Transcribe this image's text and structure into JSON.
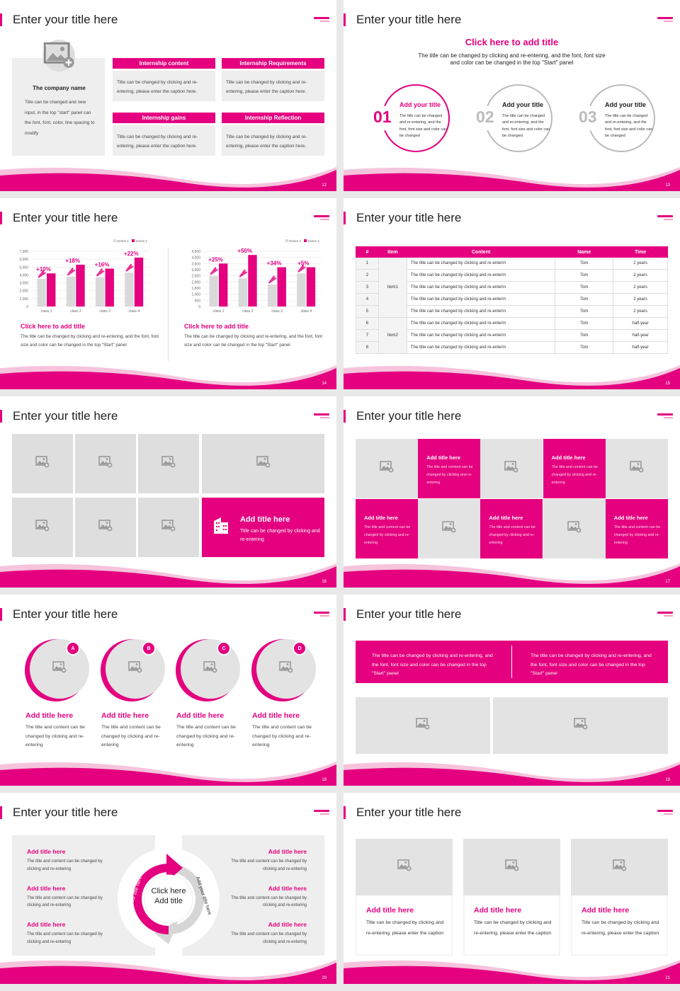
{
  "colors": {
    "accent": "#e4007f",
    "panel": "#eeeeee",
    "placeholder": "#dedede"
  },
  "common": {
    "slide_title": "Enter your title here",
    "logo_text": "xhoiland"
  },
  "slides": [
    {
      "page": "12",
      "company": {
        "name": "The company name",
        "text": "Title can be changed and new input, in the top \"start\" panel can the font, font, color, line spacing to modify",
        "icon": "image-add-icon"
      },
      "boxes": [
        {
          "header": "Internship content",
          "text": "Title can be changed by clicking and re-entering, please enter the caption here."
        },
        {
          "header": "Internship Requirements",
          "text": "Title can be changed by clicking and re-entering, please enter the caption here."
        },
        {
          "header": "Internship gains",
          "text": "Title can be changed by clicking and re-entering, please enter the caption here."
        },
        {
          "header": "Internship Reflection",
          "text": "Title can be changed by clicking and re-entering, please enter the caption here."
        }
      ]
    },
    {
      "page": "13",
      "heading": "Click here to add title",
      "subheading": "The title can be changed by clicking and re-entering, and the font, font size and color can be changed in the top \"Start\" panel",
      "circles": [
        {
          "num": "01",
          "title": "Add your title",
          "text": "The title can be changed and re-entering, and the font, font size and color can be changed"
        },
        {
          "num": "02",
          "title": "Add your title",
          "text": "The title can be changed and re-entering, and the font, font size and color can be changed"
        },
        {
          "num": "03",
          "title": "Add your title",
          "text": "The title can be changed and re-entering, and the font, font size and color can be changed"
        }
      ]
    },
    {
      "page": "14",
      "captions": [
        {
          "title": "Click here to add title",
          "text": "The title can be changed by clicking and re-entering, and the font, font size and color can be changed in the top \"Start\" panel"
        },
        {
          "title": "Click here to add title",
          "text": "The title can be changed by clicking and re-entering, and the font, font size and color can be changed in the top \"Start\" panel"
        }
      ]
    },
    {
      "page": "15",
      "table": {
        "headers": [
          "#",
          "Item",
          "Content",
          "Name",
          "Time"
        ],
        "groups": [
          {
            "item": "Item1",
            "rows": 5
          },
          {
            "item": "Item2",
            "rows": 3
          }
        ],
        "rows": [
          [
            "1",
            "The title can be changed by clicking and re-enterin",
            "Tom",
            "2 years"
          ],
          [
            "2",
            "The title can be changed by clicking and re-enterin",
            "Tom",
            "2 years"
          ],
          [
            "3",
            "The title can be changed by clicking and re-enterin",
            "Tom",
            "2 years"
          ],
          [
            "4",
            "The title can be changed by clicking and re-enterin",
            "Tom",
            "2 years"
          ],
          [
            "5",
            "The title can be changed by clicking and re-enterin",
            "Tom",
            "2 years"
          ],
          [
            "6",
            "The title can be changed by clicking and re-enterin",
            "Tom",
            "half-year"
          ],
          [
            "7",
            "The title can be changed by clicking and re-enterin",
            "Tom",
            "half-year"
          ],
          [
            "8",
            "The title can be changed by clicking and re-enterin",
            "Tom",
            "half-year"
          ]
        ]
      }
    },
    {
      "page": "16",
      "feature": {
        "title": "Add title here",
        "text": "Title can be changed by clicking and re-entering",
        "icon": "building-icon"
      }
    },
    {
      "page": "17",
      "tiles": [
        {
          "title": "Add title here",
          "text": "The title and content can be changed by clicking and re-entering"
        },
        {
          "title": "Add title here",
          "text": "The title and content can be changed by clicking and re-entering"
        },
        {
          "title": "Add title here",
          "text": "The title and content can be changed by clicking and re-entering"
        },
        {
          "title": "Add title here",
          "text": "The title and content can be changed by clicking and re-entering"
        },
        {
          "title": "Add title here",
          "text": "The title and content can be changed by clicking and re-entering"
        }
      ]
    },
    {
      "page": "18",
      "items": [
        {
          "badge": "A",
          "title": "Add title here",
          "text": "The title and content can be changed by clicking and re-entering"
        },
        {
          "badge": "B",
          "title": "Add title here",
          "text": "The title and content can be changed by clicking and re-entering"
        },
        {
          "badge": "C",
          "title": "Add title here",
          "text": "The title and content can be changed by clicking and re-entering"
        },
        {
          "badge": "D",
          "title": "Add title here",
          "text": "The title and content can be changed by clicking and re-entering"
        }
      ]
    },
    {
      "page": "19",
      "texts": [
        "The title can be changed by clicking and re-entering, and the font, font size and color can be changed in the top \"Start\" panel",
        "The title can be changed by clicking and re-entering, and the font, font size and color can be changed in the top \"Start\" panel"
      ]
    },
    {
      "page": "20",
      "center": [
        "Click here",
        "Add title"
      ],
      "arc_left": "Add your title here",
      "arc_right": "Add your title here",
      "items": [
        {
          "title": "Add title here",
          "text": "The title and content can be changed by clicking and re-entering"
        },
        {
          "title": "Add title here",
          "text": "The title and content can be changed by clicking and re-entering"
        },
        {
          "title": "Add title here",
          "text": "The title and content can be changed by clicking and re-entering"
        },
        {
          "title": "Add title here",
          "text": "The title and content can be changed by clicking and re-entering"
        },
        {
          "title": "Add title here",
          "text": "The title and content can be changed by clicking and re-entering"
        },
        {
          "title": "Add title here",
          "text": "The title and content can be changed by clicking and re-entering"
        }
      ]
    },
    {
      "page": "21",
      "cards": [
        {
          "title": "Add title here",
          "text": "Title can be changed by clicking and re-entering, please enter the caption"
        },
        {
          "title": "Add title here",
          "text": "Title can be changed by clicking and re-entering, please enter the caption"
        },
        {
          "title": "Add title here",
          "text": "Title can be changed by clicking and re-entering, please enter the caption"
        }
      ]
    }
  ],
  "chart_data": [
    {
      "type": "bar",
      "categories": [
        "class 1",
        "class 2",
        "class 3",
        "class 4"
      ],
      "series": [
        {
          "name": "Series 1",
          "values": [
            3500,
            3800,
            3700,
            4300
          ]
        },
        {
          "name": "Series 2",
          "values": [
            4200,
            5300,
            4800,
            6200
          ]
        }
      ],
      "annotations": [
        "+10%",
        "+18%",
        "+16%",
        "+22%"
      ],
      "ylim": [
        0,
        7000
      ],
      "yticks": [
        "0",
        "1,000",
        "2,000",
        "3,000",
        "4,000",
        "5,000",
        "6,000",
        "7,000"
      ],
      "grid": true,
      "legend": "top-right",
      "colors": [
        "#d9d9d9",
        "#e4007f"
      ]
    },
    {
      "type": "bar",
      "categories": [
        "class 1",
        "class 2",
        "class 3",
        "class 4"
      ],
      "series": [
        {
          "name": "Series 1",
          "values": [
            2500,
            2300,
            1800,
            2700
          ]
        },
        {
          "name": "Series 2",
          "values": [
            3500,
            4200,
            3200,
            3200
          ]
        }
      ],
      "annotations": [
        "+25%",
        "+50%",
        "+34%",
        "+5%"
      ],
      "ylim": [
        0,
        4500
      ],
      "yticks": [
        "0",
        "500",
        "1,000",
        "1,500",
        "2,000",
        "2,500",
        "3,000",
        "3,500",
        "4,000",
        "4,500"
      ],
      "grid": true,
      "legend": "top-right",
      "colors": [
        "#d9d9d9",
        "#e4007f"
      ]
    }
  ]
}
